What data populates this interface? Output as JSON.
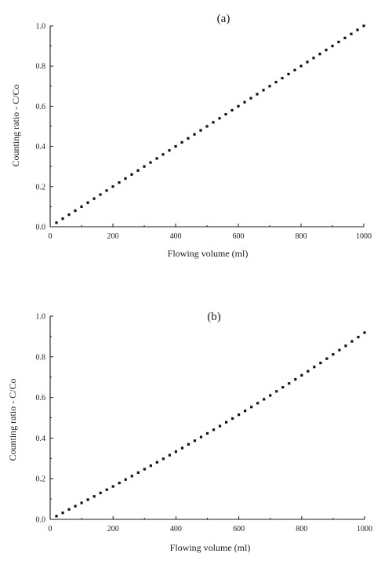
{
  "chart_data": [
    {
      "type": "scatter",
      "panel_label": "(a)",
      "xlabel": "Flowing volume (ml)",
      "ylabel": "Counting ratio - C/Co",
      "xlim": [
        0,
        1000
      ],
      "ylim": [
        0.0,
        1.0
      ],
      "x_ticks": [
        "0",
        "200",
        "400",
        "600",
        "800",
        "1000"
      ],
      "y_ticks": [
        "0.0",
        "0.2",
        "0.4",
        "0.6",
        "0.8",
        "1.0"
      ],
      "grid": false,
      "series": [
        {
          "x": [
            20,
            40,
            60,
            80,
            100,
            120,
            140,
            160,
            180,
            200,
            220,
            240,
            260,
            280,
            300,
            320,
            340,
            360,
            380,
            400,
            420,
            440,
            460,
            480,
            500,
            520,
            540,
            560,
            580,
            600,
            620,
            640,
            660,
            680,
            700,
            720,
            740,
            760,
            780,
            800,
            820,
            840,
            860,
            880,
            900,
            920,
            940,
            960,
            980,
            1000
          ],
          "y": [
            0.02,
            0.04,
            0.06,
            0.08,
            0.1,
            0.12,
            0.14,
            0.16,
            0.18,
            0.2,
            0.22,
            0.24,
            0.26,
            0.28,
            0.3,
            0.32,
            0.34,
            0.36,
            0.38,
            0.4,
            0.42,
            0.44,
            0.46,
            0.48,
            0.5,
            0.52,
            0.54,
            0.56,
            0.58,
            0.6,
            0.62,
            0.64,
            0.66,
            0.68,
            0.7,
            0.72,
            0.74,
            0.76,
            0.78,
            0.8,
            0.82,
            0.84,
            0.86,
            0.88,
            0.9,
            0.92,
            0.94,
            0.96,
            0.98,
            1.0
          ]
        }
      ]
    },
    {
      "type": "scatter",
      "panel_label": "(b)",
      "xlabel": "Flowing volume (ml)",
      "ylabel": "Counting ratio - C/Co",
      "xlim": [
        0,
        1000
      ],
      "ylim": [
        0.0,
        1.0
      ],
      "x_ticks": [
        "0",
        "200",
        "400",
        "600",
        "800",
        "1000"
      ],
      "y_ticks": [
        "0.0",
        "0.2",
        "0.4",
        "0.6",
        "0.8",
        "1.0"
      ],
      "grid": false,
      "series": [
        {
          "x": [
            20,
            40,
            60,
            80,
            100,
            120,
            140,
            160,
            180,
            200,
            220,
            240,
            260,
            280,
            300,
            320,
            340,
            360,
            380,
            400,
            420,
            440,
            460,
            480,
            500,
            520,
            540,
            560,
            580,
            600,
            620,
            640,
            660,
            680,
            700,
            720,
            740,
            760,
            780,
            800,
            820,
            840,
            860,
            880,
            900,
            920,
            940,
            960,
            980,
            1000
          ],
          "y": [
            0.016,
            0.032,
            0.049,
            0.065,
            0.081,
            0.097,
            0.113,
            0.13,
            0.146,
            0.162,
            0.179,
            0.196,
            0.213,
            0.23,
            0.247,
            0.264,
            0.281,
            0.298,
            0.316,
            0.333,
            0.351,
            0.369,
            0.387,
            0.405,
            0.423,
            0.441,
            0.459,
            0.478,
            0.496,
            0.515,
            0.534,
            0.553,
            0.572,
            0.591,
            0.61,
            0.63,
            0.65,
            0.669,
            0.689,
            0.709,
            0.729,
            0.75,
            0.77,
            0.791,
            0.812,
            0.833,
            0.854,
            0.876,
            0.897,
            0.919
          ]
        }
      ]
    }
  ]
}
